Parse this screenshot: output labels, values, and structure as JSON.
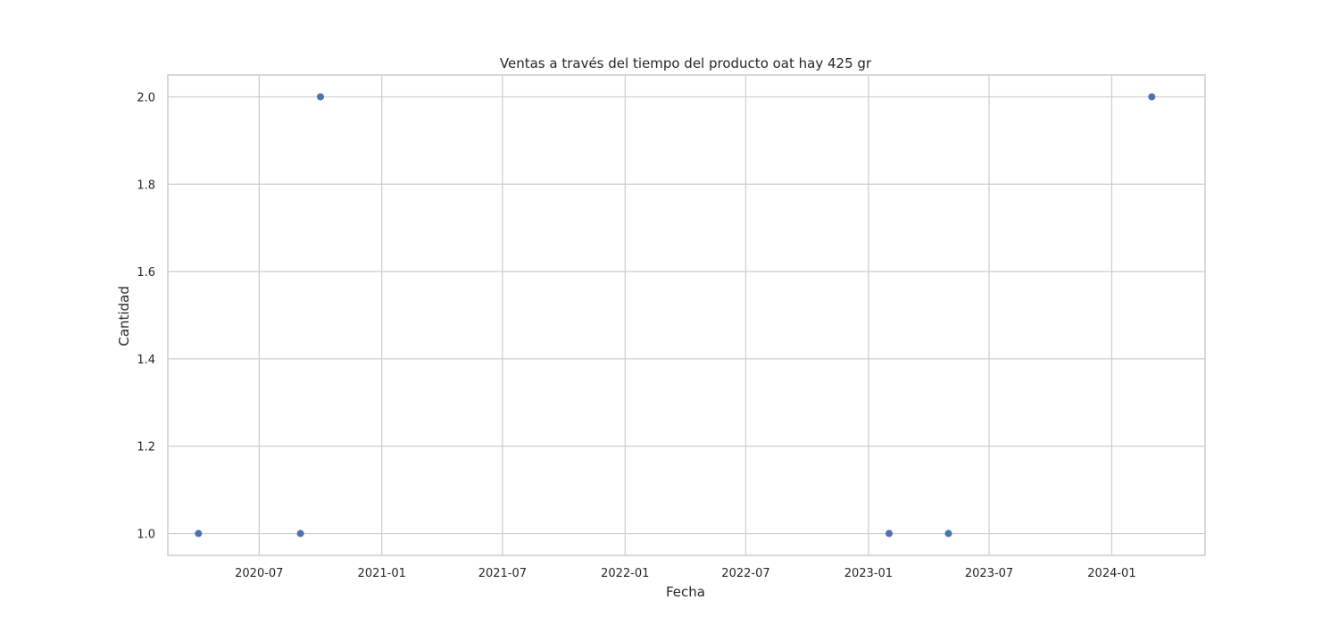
{
  "chart_data": {
    "type": "scatter",
    "title": "Ventas a través del tiempo del producto oat hay 425 gr",
    "xlabel": "Fecha",
    "ylabel": "Cantidad",
    "x_type": "date",
    "xlim": [
      "2020-02-15",
      "2024-05-20"
    ],
    "ylim": [
      0.95,
      2.05
    ],
    "x_ticks": [
      "2020-07-01",
      "2021-01-01",
      "2021-07-01",
      "2022-01-01",
      "2022-07-01",
      "2023-01-01",
      "2023-07-01",
      "2024-01-01"
    ],
    "x_tick_labels": [
      "2020-07",
      "2021-01",
      "2021-07",
      "2022-01",
      "2022-07",
      "2023-01",
      "2023-07",
      "2024-01"
    ],
    "y_ticks": [
      1.0,
      1.2,
      1.4,
      1.6,
      1.8,
      2.0
    ],
    "y_tick_labels": [
      "1.0",
      "1.2",
      "1.4",
      "1.6",
      "1.8",
      "2.0"
    ],
    "grid": true,
    "marker_color": "#4c72b0",
    "points": [
      {
        "x": "2020-04-01",
        "y": 1
      },
      {
        "x": "2020-09-01",
        "y": 1
      },
      {
        "x": "2020-10-01",
        "y": 2
      },
      {
        "x": "2023-02-01",
        "y": 1
      },
      {
        "x": "2023-05-01",
        "y": 1
      },
      {
        "x": "2024-03-01",
        "y": 2
      }
    ]
  }
}
